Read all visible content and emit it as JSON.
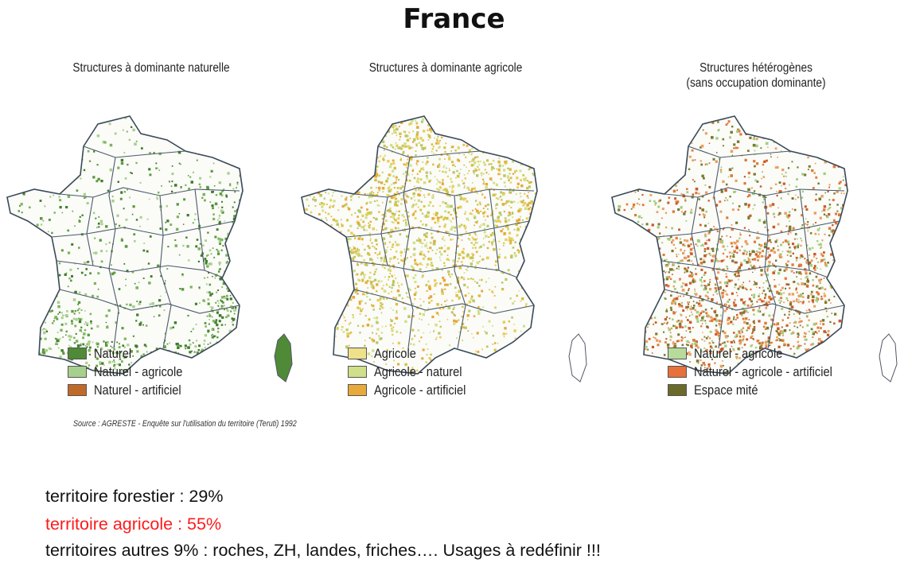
{
  "title": "France",
  "panels": [
    {
      "title_lines": [
        "Structures à dominante naturelle",
        ""
      ],
      "legend": [
        {
          "label": "Naturel",
          "color": "#4f8a37"
        },
        {
          "label": "Naturel - agricole",
          "color": "#a8d08d"
        },
        {
          "label": "Naturel - artificiel",
          "color": "#c06a2a"
        }
      ],
      "dot_colors": [
        "#3f7d2c",
        "#5a9a3e",
        "#7bb55a",
        "#a8d08d"
      ]
    },
    {
      "title_lines": [
        "Structures à dominante agricole",
        ""
      ],
      "legend": [
        {
          "label": "Agricole",
          "color": "#efe08a"
        },
        {
          "label": "Agricole - naturel",
          "color": "#cfe08a"
        },
        {
          "label": "Agricole - artificiel",
          "color": "#e8a83a"
        }
      ],
      "dot_colors": [
        "#e6cf5a",
        "#d8c040",
        "#cfe08a",
        "#e8a83a",
        "#b8c86a"
      ]
    },
    {
      "title_lines": [
        "Structures hétérogènes",
        "(sans occupation dominante)"
      ],
      "legend": [
        {
          "label": "Naturel - agricole",
          "color": "#b7dc9a"
        },
        {
          "label": "Naturel - agricole - artificiel",
          "color": "#e8703a"
        },
        {
          "label": "Espace mité",
          "color": "#6b6a2a"
        }
      ],
      "dot_colors": [
        "#e07a3a",
        "#c85a2a",
        "#9fcf80",
        "#7a7a30",
        "#e8a060"
      ]
    }
  ],
  "source": "Source : AGRESTE - Enquête sur l'utilisation du territoire (Teruti) 1992",
  "stats": [
    {
      "text": "territoire forestier : 29%",
      "color": "#111111"
    },
    {
      "text": "territoire agricole : 55%",
      "color": "#ff1a1a"
    },
    {
      "text": "territoires autres 9% : roches, ZH, landes, friches…. Usages à redéfinir !!!",
      "color": "#111111"
    }
  ]
}
